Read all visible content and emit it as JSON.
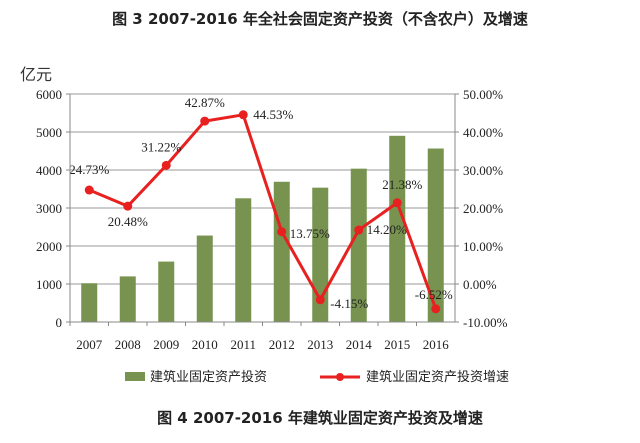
{
  "chart_data": {
    "type": "bar+line",
    "title": "图 3 2007-2016 年全社会固定资产投资（不含农户）及增速",
    "caption": "图 4   2007-2016 年建筑业固定资产投资及增速",
    "ylabel": "亿元",
    "categories": [
      "2007",
      "2008",
      "2009",
      "2010",
      "2011",
      "2012",
      "2013",
      "2014",
      "2015",
      "2016"
    ],
    "series": [
      {
        "name": "建筑业固定资产投资",
        "type": "bar",
        "axis": "left",
        "color": "#77934f",
        "values": [
          1020,
          1200,
          1590,
          2275,
          3255,
          3690,
          3535,
          4035,
          4900,
          4565
        ]
      },
      {
        "name": "建筑业固定资产投资增速",
        "type": "line",
        "axis": "right",
        "color": "#e8201f",
        "values": [
          24.73,
          20.48,
          31.22,
          42.87,
          44.53,
          13.75,
          -4.15,
          14.2,
          21.38,
          -6.52
        ],
        "labels": [
          "24.73%",
          "20.48%",
          "31.22%",
          "42.87%",
          "44.53%",
          "13.75%",
          "-4.15%",
          "14.20%",
          "21.38%",
          "-6.52%"
        ]
      }
    ],
    "ylim_left": [
      0,
      6000
    ],
    "yticks_left": [
      "0",
      "1000",
      "2000",
      "3000",
      "4000",
      "5000",
      "6000"
    ],
    "ylim_right": [
      -10,
      50
    ],
    "yticks_right": [
      "-10.00%",
      "0.00%",
      "10.00%",
      "20.00%",
      "30.00%",
      "40.00%",
      "50.00%"
    ],
    "grid": true,
    "legend_position": "bottom"
  }
}
